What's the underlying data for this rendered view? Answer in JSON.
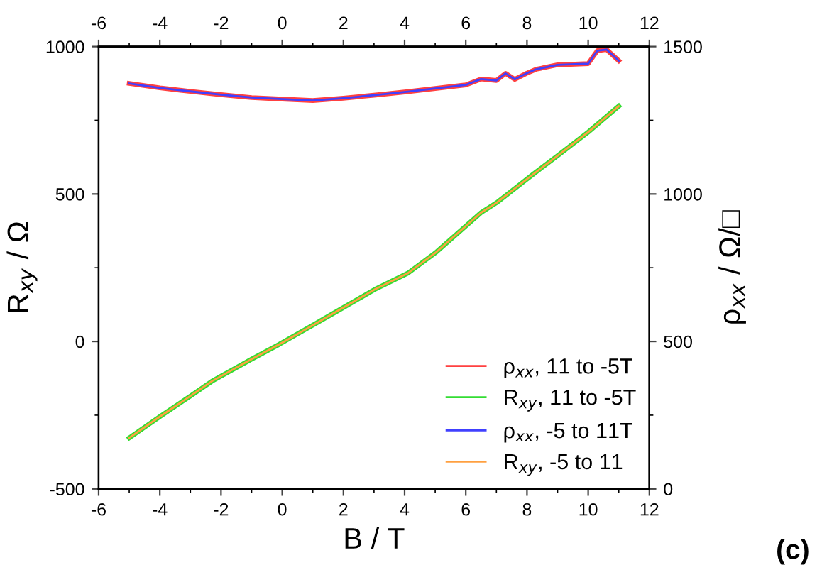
{
  "chart_data": {
    "type": "line",
    "xlabel": "B / T",
    "ylabel": "R$_{xy}$ / Ω",
    "y2label": "ρ$_{xx}$ / Ω/□",
    "xlim": [
      -6,
      12
    ],
    "xticks": [
      -6,
      -4,
      -2,
      0,
      2,
      4,
      6,
      8,
      10,
      12
    ],
    "x2lim": [
      -6,
      12
    ],
    "x2ticks": [
      -6,
      -4,
      -2,
      0,
      2,
      4,
      6,
      8,
      10,
      12
    ],
    "ylim": [
      -500,
      1000
    ],
    "yticks": [
      -500,
      0,
      500,
      1000
    ],
    "y2lim": [
      0,
      1500
    ],
    "y2ticks": [
      0,
      500,
      1000,
      1500
    ],
    "legend": "bottom right",
    "grid": false,
    "line_style": "solid",
    "marker": "none",
    "annotations": [
      "(c)"
    ],
    "series": [
      {
        "name": "ρ$_{xx}$, 11 to -5T",
        "color": "#ff4040",
        "axis": "y2",
        "x": [
          -5,
          -4,
          -3,
          -2,
          -1,
          0,
          1,
          2,
          3,
          4,
          5,
          6,
          6.5,
          7,
          7.3,
          7.6,
          8,
          8.3,
          9,
          10,
          10.3,
          10.6,
          11
        ],
        "values": [
          1375,
          1360,
          1348,
          1337,
          1327,
          1322,
          1317,
          1325,
          1335,
          1346,
          1358,
          1370,
          1390,
          1385,
          1409,
          1389,
          1410,
          1423,
          1438,
          1442,
          1486,
          1490,
          1452
        ]
      },
      {
        "name": "R$_{xy}$, 11 to -5T",
        "color": "#33dd33",
        "x": [
          -5,
          -4,
          -3,
          -2.3,
          -1,
          -0.1,
          1,
          1.6,
          3,
          4.1,
          5,
          6.5,
          7,
          8.2,
          9,
          10,
          11
        ],
        "values": [
          -327,
          -255,
          -185,
          -135,
          -60,
          -10,
          55,
          91,
          175,
          231,
          300,
          437,
          470,
          567,
          630,
          710,
          798
        ]
      },
      {
        "name": "ρ$_{xx}$, -5 to 11T",
        "color": "#4040ff",
        "axis": "y2",
        "x": [
          -5,
          -4,
          -3,
          -2,
          -1,
          0,
          1,
          2,
          3,
          4,
          5,
          6,
          6.5,
          7,
          7.3,
          7.6,
          8,
          8.3,
          9,
          10,
          10.3,
          10.6,
          11
        ],
        "values": [
          1375,
          1360,
          1348,
          1337,
          1327,
          1322,
          1317,
          1325,
          1335,
          1346,
          1358,
          1370,
          1390,
          1385,
          1409,
          1389,
          1410,
          1423,
          1438,
          1442,
          1486,
          1490,
          1452
        ]
      },
      {
        "name": "R$_{xy}$, -5 to 11",
        "color": "#ffa040",
        "x": [
          -5,
          -4,
          -3,
          -2.3,
          -1,
          -0.1,
          1,
          1.6,
          3,
          4.1,
          5,
          6.5,
          7,
          8.2,
          9,
          10,
          11
        ],
        "values": [
          -327,
          -255,
          -185,
          -135,
          -60,
          -10,
          55,
          91,
          175,
          231,
          300,
          437,
          470,
          567,
          630,
          710,
          798
        ]
      }
    ]
  }
}
